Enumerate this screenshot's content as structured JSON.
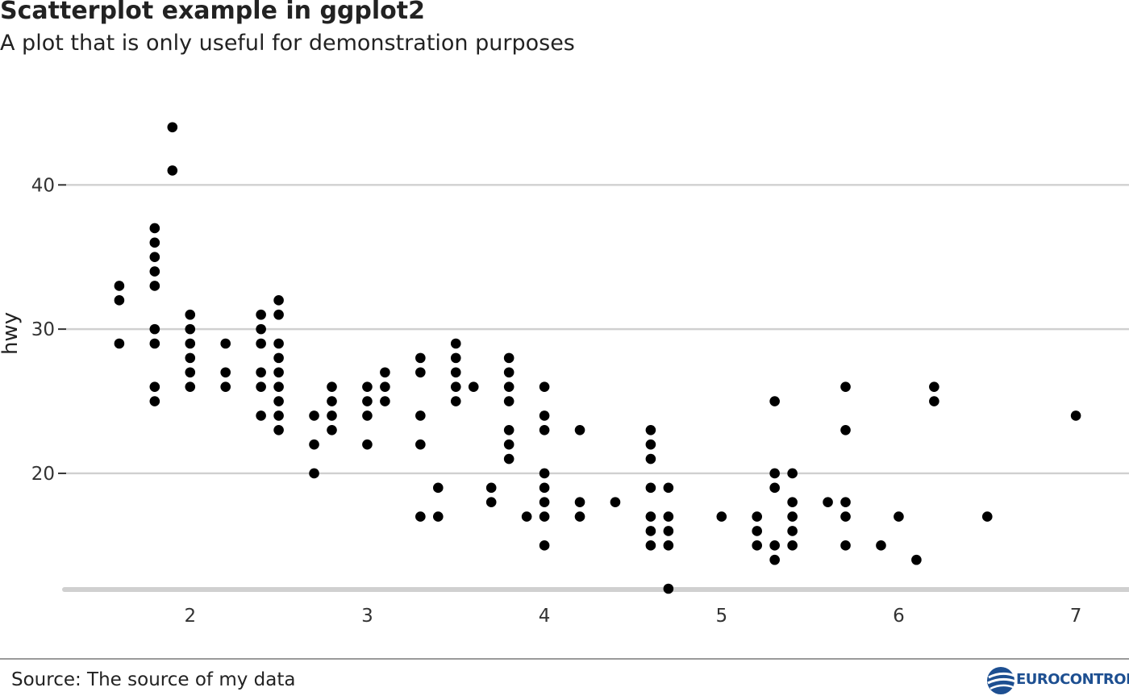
{
  "chart_data": {
    "type": "scatter",
    "title": "Scatterplot example in ggplot2",
    "subtitle": "A plot that is only useful for demonstration purposes",
    "xlabel": "",
    "ylabel": "hwy",
    "xlim": [
      1.3,
      7.3
    ],
    "ylim": [
      12,
      46
    ],
    "xticks": [
      2,
      3,
      4,
      5,
      6,
      7
    ],
    "yticks": [
      20,
      30,
      40
    ],
    "xtick_labels": [
      "2",
      "3",
      "4",
      "5",
      "6",
      "7"
    ],
    "ytick_labels": [
      "20",
      "30",
      "40"
    ],
    "grid": "horizontal major",
    "point_color": "#000000",
    "gridline_color": "#d0d0d0",
    "points": [
      [
        1.6,
        33
      ],
      [
        1.6,
        32
      ],
      [
        1.6,
        29
      ],
      [
        1.8,
        37
      ],
      [
        1.8,
        36
      ],
      [
        1.8,
        35
      ],
      [
        1.8,
        34
      ],
      [
        1.8,
        33
      ],
      [
        1.8,
        30
      ],
      [
        1.8,
        29
      ],
      [
        1.8,
        26
      ],
      [
        1.8,
        25
      ],
      [
        1.9,
        44
      ],
      [
        1.9,
        41
      ],
      [
        2.0,
        31
      ],
      [
        2.0,
        30
      ],
      [
        2.0,
        29
      ],
      [
        2.0,
        28
      ],
      [
        2.0,
        27
      ],
      [
        2.0,
        26
      ],
      [
        2.2,
        29
      ],
      [
        2.2,
        27
      ],
      [
        2.2,
        26
      ],
      [
        2.4,
        31
      ],
      [
        2.4,
        30
      ],
      [
        2.4,
        29
      ],
      [
        2.4,
        27
      ],
      [
        2.4,
        26
      ],
      [
        2.4,
        24
      ],
      [
        2.5,
        32
      ],
      [
        2.5,
        31
      ],
      [
        2.5,
        29
      ],
      [
        2.5,
        28
      ],
      [
        2.5,
        27
      ],
      [
        2.5,
        26
      ],
      [
        2.5,
        25
      ],
      [
        2.5,
        24
      ],
      [
        2.5,
        23
      ],
      [
        2.7,
        24
      ],
      [
        2.7,
        22
      ],
      [
        2.7,
        20
      ],
      [
        2.8,
        26
      ],
      [
        2.8,
        25
      ],
      [
        2.8,
        24
      ],
      [
        2.8,
        23
      ],
      [
        3.0,
        26
      ],
      [
        3.0,
        25
      ],
      [
        3.0,
        24
      ],
      [
        3.0,
        22
      ],
      [
        3.1,
        27
      ],
      [
        3.1,
        26
      ],
      [
        3.1,
        25
      ],
      [
        3.3,
        28
      ],
      [
        3.3,
        27
      ],
      [
        3.3,
        24
      ],
      [
        3.3,
        22
      ],
      [
        3.3,
        17
      ],
      [
        3.4,
        19
      ],
      [
        3.4,
        17
      ],
      [
        3.5,
        29
      ],
      [
        3.5,
        28
      ],
      [
        3.5,
        27
      ],
      [
        3.5,
        26
      ],
      [
        3.5,
        25
      ],
      [
        3.6,
        26
      ],
      [
        3.7,
        19
      ],
      [
        3.7,
        18
      ],
      [
        3.8,
        28
      ],
      [
        3.8,
        27
      ],
      [
        3.8,
        26
      ],
      [
        3.8,
        25
      ],
      [
        3.8,
        23
      ],
      [
        3.8,
        22
      ],
      [
        3.8,
        21
      ],
      [
        3.9,
        17
      ],
      [
        4.0,
        26
      ],
      [
        4.0,
        24
      ],
      [
        4.0,
        23
      ],
      [
        4.0,
        20
      ],
      [
        4.0,
        19
      ],
      [
        4.0,
        18
      ],
      [
        4.0,
        17
      ],
      [
        4.0,
        15
      ],
      [
        4.2,
        23
      ],
      [
        4.2,
        18
      ],
      [
        4.2,
        17
      ],
      [
        4.4,
        18
      ],
      [
        4.6,
        23
      ],
      [
        4.6,
        22
      ],
      [
        4.6,
        21
      ],
      [
        4.6,
        19
      ],
      [
        4.6,
        17
      ],
      [
        4.6,
        16
      ],
      [
        4.6,
        15
      ],
      [
        4.7,
        19
      ],
      [
        4.7,
        17
      ],
      [
        4.7,
        16
      ],
      [
        4.7,
        15
      ],
      [
        4.7,
        12
      ],
      [
        5.0,
        17
      ],
      [
        5.2,
        17
      ],
      [
        5.2,
        16
      ],
      [
        5.2,
        15
      ],
      [
        5.3,
        25
      ],
      [
        5.3,
        20
      ],
      [
        5.3,
        19
      ],
      [
        5.3,
        15
      ],
      [
        5.3,
        14
      ],
      [
        5.4,
        20
      ],
      [
        5.4,
        18
      ],
      [
        5.4,
        17
      ],
      [
        5.4,
        16
      ],
      [
        5.4,
        15
      ],
      [
        5.6,
        18
      ],
      [
        5.7,
        26
      ],
      [
        5.7,
        23
      ],
      [
        5.7,
        18
      ],
      [
        5.7,
        17
      ],
      [
        5.7,
        15
      ],
      [
        5.9,
        15
      ],
      [
        6.0,
        17
      ],
      [
        6.1,
        14
      ],
      [
        6.2,
        26
      ],
      [
        6.2,
        25
      ],
      [
        6.5,
        17
      ],
      [
        7.0,
        24
      ]
    ]
  },
  "footer": {
    "source": "Source: The source of my data",
    "logo_text": "EUROCONTROL"
  },
  "colors": {
    "logo_blue": "#1d4f91"
  }
}
